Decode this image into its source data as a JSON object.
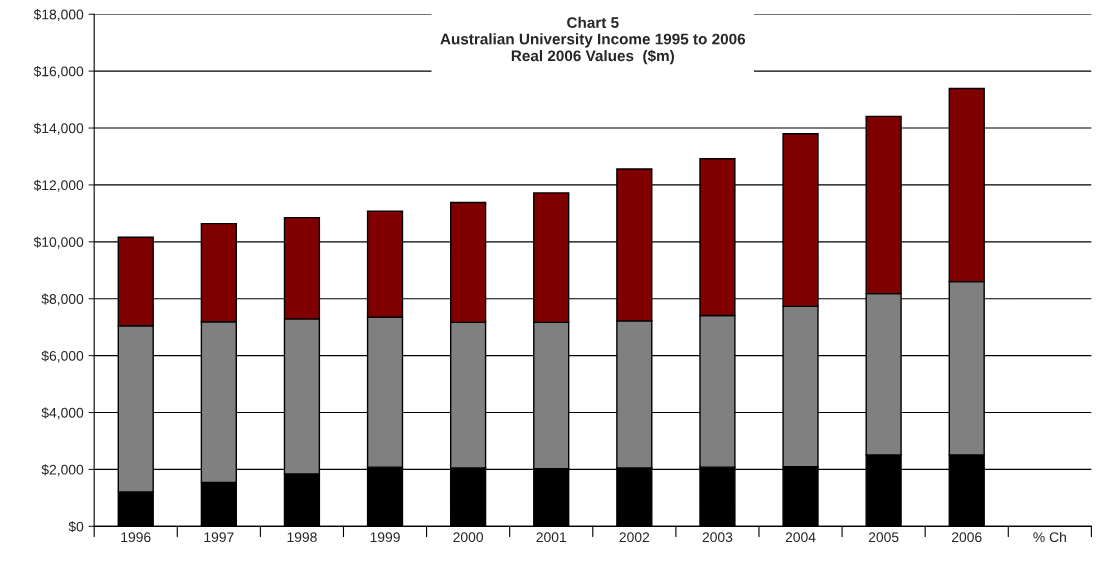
{
  "chart_data": {
    "type": "bar",
    "title": "Chart 5\nAustralian University Income 1995 to 2006\nReal 2006 Values  ($m)",
    "categories": [
      "1996",
      "1997",
      "1998",
      "1999",
      "2000",
      "2001",
      "2002",
      "2003",
      "2004",
      "2005",
      "2006",
      "% Ch"
    ],
    "stacked": true,
    "series": [
      {
        "color": "#000000",
        "values": [
          1210,
          1540,
          1840,
          2080,
          2050,
          2030,
          2050,
          2080,
          2100,
          2510,
          2510,
          null
        ]
      },
      {
        "color": "#808080",
        "values": [
          5840,
          5650,
          5450,
          5270,
          5120,
          5140,
          5170,
          5330,
          5630,
          5670,
          6090,
          null
        ]
      },
      {
        "color": "#800000",
        "values": [
          3110,
          3450,
          3560,
          3730,
          4210,
          4550,
          5340,
          5510,
          6070,
          6230,
          6790,
          null
        ]
      }
    ],
    "ylim": [
      0,
      18000
    ],
    "yticks": [
      {
        "value": 0,
        "label": "$0"
      },
      {
        "value": 2000,
        "label": "$2,000"
      },
      {
        "value": 4000,
        "label": "$4,000"
      },
      {
        "value": 6000,
        "label": "$6,000"
      },
      {
        "value": 8000,
        "label": "$8,000"
      },
      {
        "value": 10000,
        "label": "$10,000"
      },
      {
        "value": 12000,
        "label": "$12,000"
      },
      {
        "value": 14000,
        "label": "$14,000"
      },
      {
        "value": 16000,
        "label": "$16,000"
      },
      {
        "value": 18000,
        "label": "$18,000"
      }
    ],
    "grid": "y"
  }
}
